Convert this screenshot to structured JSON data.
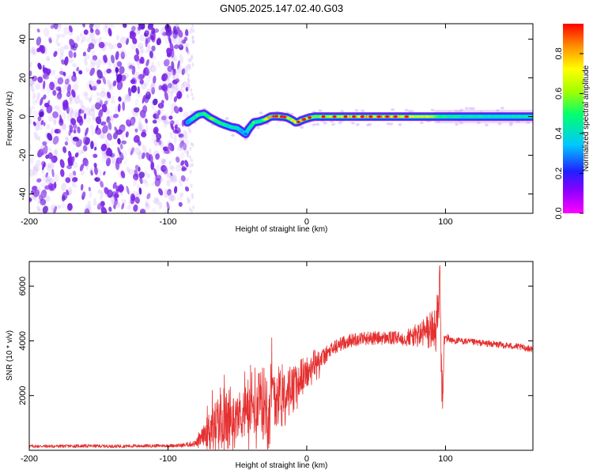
{
  "figure_title": "GN05.2025.147.02.40.G03",
  "colors": {
    "snr_line": "#e53030",
    "background_dots": "#7a22e6",
    "colormap": [
      "#ff00ff",
      "#8a00ff",
      "#2020ff",
      "#00c8ff",
      "#00ff70",
      "#a0ff00",
      "#ffff00",
      "#ff9000",
      "#ff0000"
    ]
  },
  "chart_data": [
    {
      "type": "heatmap",
      "title": "GN05.2025.147.02.40.G03",
      "xlabel": "Height of straight line (km)",
      "ylabel": "Frequency (Hz)",
      "xlim": [
        -200,
        163
      ],
      "ylim": [
        -50,
        48
      ],
      "xticks": [
        -200,
        -100,
        0,
        100
      ],
      "xtick_labels": [
        "-200",
        "-100",
        "0",
        "100"
      ],
      "yticks": [
        -40,
        -20,
        0,
        20,
        40
      ],
      "ytick_labels": [
        "-40",
        "-20",
        "0",
        "20",
        "40"
      ],
      "colorbar": {
        "label": "Normalized spectral amplitude",
        "range": [
          0.0,
          0.95
        ],
        "ticks": [
          0.0,
          0.2,
          0.4,
          0.6,
          0.8
        ],
        "tick_labels": [
          "0.0",
          "0.2",
          "0.4",
          "0.6",
          "0.8"
        ]
      },
      "noise_region_x": [
        -200,
        -86
      ],
      "ridge": {
        "x": [
          -86,
          -82,
          -78,
          -74,
          -70,
          -66,
          -62,
          -58,
          -54,
          -50,
          -46,
          -44,
          -42,
          -38,
          -34,
          -30,
          -26,
          -22,
          -18,
          -14,
          -10,
          -8,
          -6,
          -4,
          -2,
          0,
          2,
          6,
          10,
          20,
          40,
          60,
          80,
          92,
          100,
          120,
          140,
          163
        ],
        "freq": [
          -3,
          -1,
          1,
          1.5,
          -0.5,
          -2,
          -3.5,
          -4.5,
          -5.5,
          -6,
          -8,
          -9,
          -6.5,
          -3,
          -2.5,
          -1.5,
          0,
          0.2,
          0,
          -0.5,
          -2,
          -3,
          -2.8,
          -2,
          -1.5,
          -1,
          -0.5,
          0,
          0,
          0,
          0,
          0,
          0,
          0,
          0,
          0,
          0,
          0
        ],
        "amplitude": [
          0.3,
          0.45,
          0.55,
          0.5,
          0.6,
          0.55,
          0.5,
          0.5,
          0.45,
          0.4,
          0.35,
          0.3,
          0.45,
          0.55,
          0.5,
          0.65,
          0.9,
          0.9,
          0.85,
          0.75,
          0.7,
          0.8,
          0.65,
          0.75,
          0.9,
          0.85,
          0.7,
          0.6,
          0.65,
          0.75,
          0.8,
          0.85,
          0.75,
          0.7,
          0.5,
          0.45,
          0.45,
          0.45
        ]
      }
    },
    {
      "type": "line",
      "xlabel": "Height of straight line (km)",
      "ylabel": "SNR (10 * v/v)",
      "xlim": [
        -200,
        163
      ],
      "ylim": [
        0,
        6900
      ],
      "xticks": [
        -200,
        -100,
        0,
        100
      ],
      "xtick_labels": [
        "-200",
        "-100",
        "0",
        "100"
      ],
      "yticks": [
        2000,
        4000,
        6000
      ],
      "ytick_labels": [
        "2000",
        "4000",
        "6000"
      ],
      "series": [
        {
          "x": [
            -200,
            -180,
            -160,
            -140,
            -120,
            -100,
            -90,
            -80,
            -75,
            -70,
            -65,
            -60,
            -55,
            -50,
            -45,
            -40,
            -35,
            -30,
            -25,
            -20,
            -15,
            -10,
            -5,
            0,
            5,
            10,
            15,
            20,
            25,
            30,
            35,
            40,
            45,
            50,
            55,
            60,
            65,
            70,
            75,
            80,
            85,
            90,
            93,
            95,
            96,
            97,
            98,
            99,
            100,
            102,
            105,
            110,
            120,
            130,
            140,
            150,
            163
          ],
          "values": [
            150,
            150,
            160,
            150,
            160,
            170,
            180,
            250,
            500,
            800,
            1000,
            1100,
            1100,
            1300,
            1400,
            1500,
            1600,
            1800,
            2000,
            2100,
            2200,
            2400,
            2550,
            2800,
            3050,
            3300,
            3550,
            3750,
            3900,
            4000,
            4050,
            4100,
            4100,
            4100,
            4100,
            4100,
            4100,
            4100,
            4150,
            4200,
            4300,
            4400,
            4500,
            5200,
            6300,
            2800,
            1800,
            4000,
            4100,
            4100,
            4000,
            4000,
            3950,
            3900,
            3850,
            3800,
            3700
          ],
          "noise_amplitude": [
            60,
            60,
            60,
            60,
            60,
            60,
            70,
            120,
            300,
            700,
            900,
            1100,
            900,
            800,
            1000,
            900,
            1200,
            1400,
            1300,
            1000,
            700,
            700,
            500,
            450,
            400,
            350,
            300,
            300,
            250,
            250,
            250,
            250,
            250,
            250,
            250,
            250,
            250,
            300,
            350,
            450,
            600,
            800,
            1000,
            700,
            900,
            800,
            600,
            300,
            200,
            150,
            120,
            120,
            120,
            120,
            120,
            120,
            120
          ]
        }
      ]
    }
  ]
}
